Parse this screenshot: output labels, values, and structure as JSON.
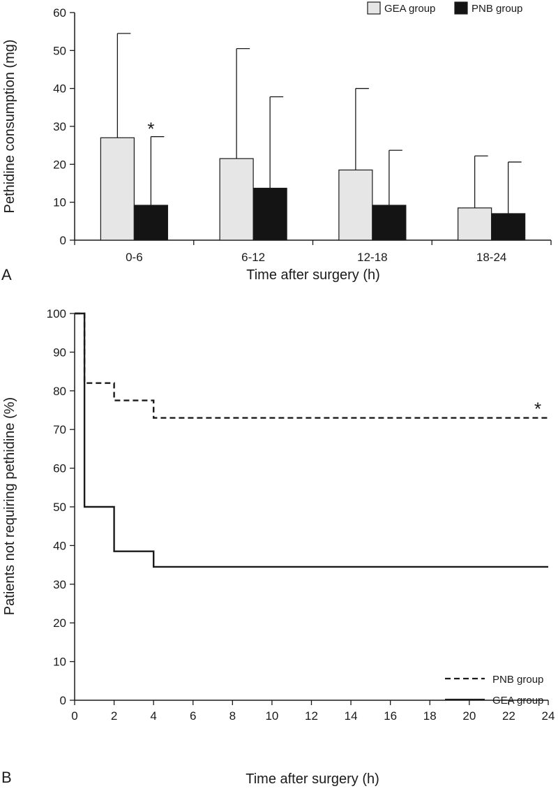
{
  "chart_data": [
    {
      "panel": "A",
      "type": "bar",
      "categories": [
        "0-6",
        "6-12",
        "12-18",
        "18-24"
      ],
      "series": [
        {
          "name": "GEA group",
          "color": "#e6e6e6",
          "values": [
            27,
            21.5,
            18.5,
            8.5
          ],
          "error_upper": [
            54.5,
            50.5,
            40,
            22.2
          ]
        },
        {
          "name": "PNB group",
          "color": "#141414",
          "values": [
            9.2,
            13.7,
            9.2,
            7
          ],
          "error_upper": [
            27.3,
            37.8,
            23.7,
            20.6
          ]
        }
      ],
      "ylabel": "Pethidine consumption (mg)",
      "xlabel": "Time after surgery (h)",
      "ylim": [
        0,
        60
      ],
      "yticks": [
        "0",
        "10",
        "20",
        "30",
        "40",
        "50",
        "60"
      ],
      "legend": {
        "position": "top-right",
        "entries": [
          "GEA group",
          "PNB group"
        ]
      },
      "annotations": [
        {
          "text": "*",
          "category": "0-6",
          "series": "PNB group"
        }
      ],
      "panel_label": "A"
    },
    {
      "panel": "B",
      "type": "line",
      "step": true,
      "series": [
        {
          "name": "PNB group",
          "style": "dashed",
          "x": [
            0,
            0.5,
            0.5,
            2,
            2,
            4,
            4,
            24
          ],
          "y": [
            100,
            100,
            82,
            82,
            77.5,
            77.5,
            73,
            73
          ]
        },
        {
          "name": "GEA group",
          "style": "solid",
          "x": [
            0,
            0.5,
            0.5,
            2,
            2,
            4,
            4,
            24
          ],
          "y": [
            100,
            100,
            50,
            50,
            38.5,
            38.5,
            34.5,
            34.5
          ]
        }
      ],
      "ylabel": "Patients not requiring pethidine (%)",
      "xlabel": "Time after surgery (h)",
      "xlim": [
        0,
        24
      ],
      "ylim": [
        0,
        100
      ],
      "xticks": [
        "0",
        "2",
        "4",
        "6",
        "8",
        "10",
        "12",
        "14",
        "16",
        "18",
        "20",
        "22",
        "24"
      ],
      "yticks": [
        "0",
        "10",
        "20",
        "30",
        "40",
        "50",
        "60",
        "70",
        "80",
        "90",
        "100"
      ],
      "legend": {
        "position": "bottom-right",
        "entries": [
          "PNB group",
          "GEA group"
        ]
      },
      "annotations": [
        {
          "text": "*",
          "x": 24,
          "y": 73
        }
      ],
      "panel_label": "B"
    }
  ]
}
